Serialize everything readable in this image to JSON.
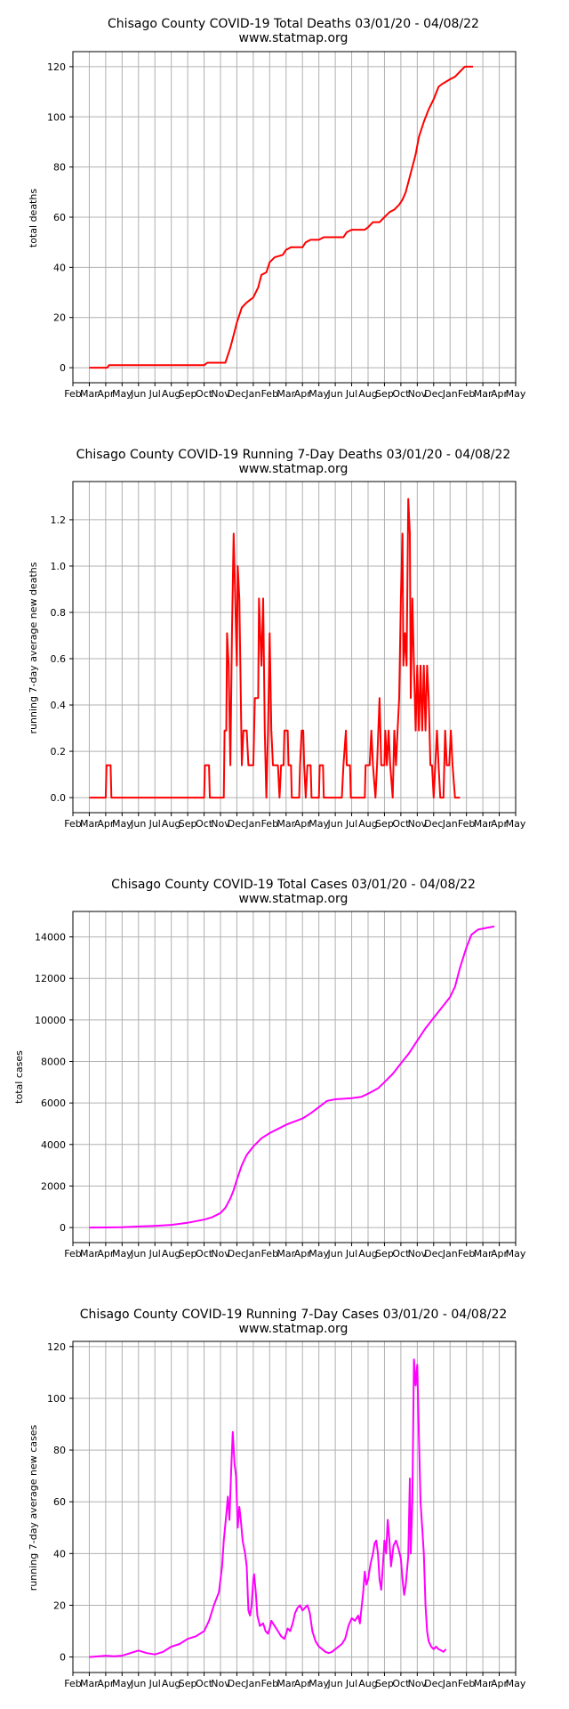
{
  "months": [
    "Feb",
    "Mar",
    "Apr",
    "May",
    "Jun",
    "Jul",
    "Aug",
    "Sep",
    "Oct",
    "Nov",
    "Dec",
    "Jan",
    "Feb",
    "Mar",
    "Apr",
    "May",
    "Jun",
    "Jul",
    "Aug",
    "Sep",
    "Oct",
    "Nov",
    "Dec",
    "Jan",
    "Feb",
    "Mar",
    "Apr",
    "May"
  ],
  "chart_data": [
    {
      "type": "line",
      "title": "Chisago County COVID-19 Total Deaths 03/01/20 - 04/08/22",
      "subtitle": "www.statmap.org",
      "ylabel": "total deaths",
      "color": "#ff0000",
      "grid": true,
      "xlim": [
        0,
        27
      ],
      "ylim": [
        -6,
        126
      ],
      "yticks": [
        0,
        20,
        40,
        60,
        80,
        100,
        120
      ],
      "points": [
        [
          1,
          0
        ],
        [
          2.1,
          0
        ],
        [
          2.2,
          1
        ],
        [
          8,
          1
        ],
        [
          8.2,
          2
        ],
        [
          9.3,
          2
        ],
        [
          9.6,
          8
        ],
        [
          9.8,
          13
        ],
        [
          10,
          18
        ],
        [
          10.3,
          24
        ],
        [
          10.6,
          26
        ],
        [
          11,
          28
        ],
        [
          11.3,
          32
        ],
        [
          11.5,
          37
        ],
        [
          11.8,
          38
        ],
        [
          12,
          42
        ],
        [
          12.3,
          44
        ],
        [
          12.8,
          45
        ],
        [
          13,
          47
        ],
        [
          13.3,
          48
        ],
        [
          14,
          48
        ],
        [
          14.2,
          50
        ],
        [
          14.5,
          51
        ],
        [
          15,
          51
        ],
        [
          15.3,
          52
        ],
        [
          16.5,
          52
        ],
        [
          16.7,
          54
        ],
        [
          17,
          55
        ],
        [
          17.8,
          55
        ],
        [
          18,
          56
        ],
        [
          18.3,
          58
        ],
        [
          18.7,
          58
        ],
        [
          19,
          60
        ],
        [
          19.3,
          62
        ],
        [
          19.6,
          63
        ],
        [
          19.9,
          65
        ],
        [
          20.1,
          67
        ],
        [
          20.3,
          70
        ],
        [
          20.5,
          75
        ],
        [
          20.7,
          80
        ],
        [
          20.9,
          85
        ],
        [
          21.1,
          92
        ],
        [
          21.4,
          98
        ],
        [
          21.7,
          103
        ],
        [
          22,
          107
        ],
        [
          22.3,
          112
        ],
        [
          22.5,
          113
        ],
        [
          23,
          115
        ],
        [
          23.3,
          116
        ],
        [
          23.6,
          118
        ],
        [
          23.9,
          120
        ],
        [
          24.4,
          120
        ]
      ]
    },
    {
      "type": "line",
      "title": "Chisago County COVID-19 Running 7-Day Deaths 03/01/20 - 04/08/22",
      "subtitle": "www.statmap.org",
      "ylabel": "running 7-day average new deaths",
      "color": "#ff0000",
      "grid": true,
      "xlim": [
        0,
        27
      ],
      "ylim": [
        -0.065,
        1.365
      ],
      "yticks": [
        0.0,
        0.2,
        0.4,
        0.6,
        0.8,
        1.0,
        1.2
      ],
      "points": [
        [
          1,
          0
        ],
        [
          2,
          0
        ],
        [
          2.05,
          0.14
        ],
        [
          2.3,
          0.14
        ],
        [
          2.35,
          0
        ],
        [
          8,
          0
        ],
        [
          8.05,
          0.14
        ],
        [
          8.3,
          0.14
        ],
        [
          8.35,
          0
        ],
        [
          9.2,
          0
        ],
        [
          9.25,
          0.29
        ],
        [
          9.35,
          0.29
        ],
        [
          9.4,
          0.71
        ],
        [
          9.5,
          0.57
        ],
        [
          9.6,
          0.14
        ],
        [
          9.7,
          0.71
        ],
        [
          9.8,
          1.14
        ],
        [
          9.9,
          0.86
        ],
        [
          10,
          0.57
        ],
        [
          10.05,
          1.0
        ],
        [
          10.15,
          0.86
        ],
        [
          10.3,
          0.14
        ],
        [
          10.4,
          0.29
        ],
        [
          10.6,
          0.29
        ],
        [
          10.7,
          0.14
        ],
        [
          11,
          0.14
        ],
        [
          11.1,
          0.43
        ],
        [
          11.3,
          0.43
        ],
        [
          11.35,
          0.86
        ],
        [
          11.5,
          0.57
        ],
        [
          11.6,
          0.86
        ],
        [
          11.7,
          0.29
        ],
        [
          11.8,
          0
        ],
        [
          11.9,
          0.29
        ],
        [
          12,
          0.71
        ],
        [
          12.1,
          0.29
        ],
        [
          12.2,
          0.14
        ],
        [
          12.5,
          0.14
        ],
        [
          12.6,
          0
        ],
        [
          12.7,
          0.14
        ],
        [
          12.85,
          0.14
        ],
        [
          12.9,
          0.29
        ],
        [
          13.1,
          0.29
        ],
        [
          13.15,
          0.14
        ],
        [
          13.3,
          0.14
        ],
        [
          13.35,
          0
        ],
        [
          13.8,
          0
        ],
        [
          13.85,
          0.14
        ],
        [
          13.95,
          0.29
        ],
        [
          14.05,
          0.29
        ],
        [
          14.1,
          0.14
        ],
        [
          14.2,
          0
        ],
        [
          14.3,
          0.14
        ],
        [
          14.5,
          0.14
        ],
        [
          14.55,
          0
        ],
        [
          15,
          0
        ],
        [
          15.05,
          0.14
        ],
        [
          15.25,
          0.14
        ],
        [
          15.3,
          0
        ],
        [
          16.4,
          0
        ],
        [
          16.5,
          0.14
        ],
        [
          16.65,
          0.29
        ],
        [
          16.7,
          0.14
        ],
        [
          16.9,
          0.14
        ],
        [
          16.95,
          0
        ],
        [
          17.8,
          0
        ],
        [
          17.85,
          0.14
        ],
        [
          18.1,
          0.14
        ],
        [
          18.2,
          0.29
        ],
        [
          18.3,
          0.14
        ],
        [
          18.45,
          0
        ],
        [
          18.55,
          0.14
        ],
        [
          18.7,
          0.43
        ],
        [
          18.8,
          0.14
        ],
        [
          19,
          0.14
        ],
        [
          19.05,
          0.29
        ],
        [
          19.15,
          0.14
        ],
        [
          19.25,
          0.29
        ],
        [
          19.35,
          0.14
        ],
        [
          19.5,
          0
        ],
        [
          19.6,
          0.29
        ],
        [
          19.7,
          0.14
        ],
        [
          19.8,
          0.29
        ],
        [
          19.9,
          0.43
        ],
        [
          20,
          0.86
        ],
        [
          20.1,
          1.14
        ],
        [
          20.15,
          0.57
        ],
        [
          20.25,
          0.71
        ],
        [
          20.35,
          0.57
        ],
        [
          20.45,
          1.29
        ],
        [
          20.55,
          1.14
        ],
        [
          20.6,
          0.43
        ],
        [
          20.7,
          0.86
        ],
        [
          20.8,
          0.57
        ],
        [
          20.9,
          0.29
        ],
        [
          21,
          0.57
        ],
        [
          21.1,
          0.29
        ],
        [
          21.2,
          0.57
        ],
        [
          21.3,
          0.29
        ],
        [
          21.4,
          0.57
        ],
        [
          21.5,
          0.29
        ],
        [
          21.6,
          0.57
        ],
        [
          21.7,
          0.43
        ],
        [
          21.8,
          0.14
        ],
        [
          21.9,
          0.14
        ],
        [
          22,
          0
        ],
        [
          22.1,
          0.14
        ],
        [
          22.2,
          0.29
        ],
        [
          22.3,
          0.14
        ],
        [
          22.4,
          0
        ],
        [
          22.6,
          0
        ],
        [
          22.7,
          0.29
        ],
        [
          22.8,
          0.14
        ],
        [
          22.95,
          0.14
        ],
        [
          23.05,
          0.29
        ],
        [
          23.15,
          0.14
        ],
        [
          23.3,
          0
        ],
        [
          23.6,
          0
        ]
      ]
    },
    {
      "type": "line",
      "title": "Chisago County COVID-19 Total Cases 03/01/20 - 04/08/22",
      "subtitle": "www.statmap.org",
      "ylabel": "total cases",
      "color": "#ff00ff",
      "grid": true,
      "xlim": [
        0,
        27
      ],
      "ylim": [
        -725,
        15225
      ],
      "yticks": [
        0,
        2000,
        4000,
        6000,
        8000,
        10000,
        12000,
        14000
      ],
      "points": [
        [
          1,
          0
        ],
        [
          2,
          5
        ],
        [
          3,
          15
        ],
        [
          4,
          50
        ],
        [
          5,
          80
        ],
        [
          6,
          130
        ],
        [
          7,
          230
        ],
        [
          8,
          380
        ],
        [
          8.5,
          500
        ],
        [
          9,
          700
        ],
        [
          9.3,
          950
        ],
        [
          9.6,
          1400
        ],
        [
          9.8,
          1800
        ],
        [
          10,
          2300
        ],
        [
          10.3,
          3000
        ],
        [
          10.6,
          3500
        ],
        [
          11,
          3900
        ],
        [
          11.5,
          4300
        ],
        [
          12,
          4550
        ],
        [
          12.5,
          4750
        ],
        [
          13,
          4950
        ],
        [
          13.5,
          5100
        ],
        [
          14,
          5250
        ],
        [
          14.5,
          5500
        ],
        [
          15,
          5800
        ],
        [
          15.5,
          6100
        ],
        [
          16,
          6180
        ],
        [
          17,
          6230
        ],
        [
          17.6,
          6300
        ],
        [
          18,
          6450
        ],
        [
          18.6,
          6700
        ],
        [
          19,
          7000
        ],
        [
          19.5,
          7400
        ],
        [
          20,
          7900
        ],
        [
          20.5,
          8400
        ],
        [
          21,
          9000
        ],
        [
          21.5,
          9600
        ],
        [
          22,
          10100
        ],
        [
          22.5,
          10600
        ],
        [
          23,
          11100
        ],
        [
          23.3,
          11600
        ],
        [
          23.6,
          12500
        ],
        [
          24,
          13500
        ],
        [
          24.3,
          14100
        ],
        [
          24.7,
          14350
        ],
        [
          25.3,
          14450
        ],
        [
          25.7,
          14500
        ]
      ]
    },
    {
      "type": "line",
      "title": "Chisago County COVID-19 Running 7-Day Cases 03/01/20 - 04/08/22",
      "subtitle": "www.statmap.org",
      "ylabel": "running 7-day average new cases",
      "color": "#ff00ff",
      "grid": true,
      "xlim": [
        0,
        27
      ],
      "ylim": [
        -6,
        122
      ],
      "yticks": [
        0,
        20,
        40,
        60,
        80,
        100,
        120
      ],
      "points": [
        [
          1,
          0
        ],
        [
          2,
          0.5
        ],
        [
          2.5,
          0.3
        ],
        [
          3,
          0.5
        ],
        [
          3.5,
          1.5
        ],
        [
          4,
          2.5
        ],
        [
          4.5,
          1.5
        ],
        [
          5,
          1
        ],
        [
          5.5,
          2
        ],
        [
          6,
          4
        ],
        [
          6.5,
          5
        ],
        [
          7,
          7
        ],
        [
          7.5,
          8
        ],
        [
          8,
          10
        ],
        [
          8.3,
          14
        ],
        [
          8.6,
          20
        ],
        [
          8.9,
          25
        ],
        [
          9.1,
          35
        ],
        [
          9.2,
          45
        ],
        [
          9.35,
          55
        ],
        [
          9.45,
          62
        ],
        [
          9.55,
          53
        ],
        [
          9.65,
          72
        ],
        [
          9.75,
          87
        ],
        [
          9.85,
          75
        ],
        [
          9.95,
          70
        ],
        [
          10.05,
          50
        ],
        [
          10.15,
          58
        ],
        [
          10.25,
          52
        ],
        [
          10.35,
          45
        ],
        [
          10.5,
          40
        ],
        [
          10.6,
          35
        ],
        [
          10.7,
          18
        ],
        [
          10.8,
          16
        ],
        [
          10.9,
          20
        ],
        [
          11,
          30
        ],
        [
          11.05,
          32
        ],
        [
          11.15,
          25
        ],
        [
          11.25,
          16
        ],
        [
          11.4,
          12
        ],
        [
          11.6,
          13
        ],
        [
          11.75,
          10
        ],
        [
          11.9,
          9
        ],
        [
          12,
          11
        ],
        [
          12.1,
          14
        ],
        [
          12.3,
          12
        ],
        [
          12.5,
          10
        ],
        [
          12.7,
          8
        ],
        [
          12.9,
          7
        ],
        [
          13,
          9
        ],
        [
          13.1,
          11
        ],
        [
          13.25,
          10
        ],
        [
          13.4,
          13
        ],
        [
          13.55,
          17
        ],
        [
          13.7,
          19
        ],
        [
          13.85,
          20
        ],
        [
          14,
          18
        ],
        [
          14.15,
          19
        ],
        [
          14.3,
          20
        ],
        [
          14.45,
          17
        ],
        [
          14.6,
          10
        ],
        [
          14.8,
          6
        ],
        [
          15,
          4
        ],
        [
          15.2,
          3
        ],
        [
          15.4,
          2
        ],
        [
          15.6,
          1.5
        ],
        [
          15.8,
          2
        ],
        [
          16,
          3
        ],
        [
          16.2,
          4
        ],
        [
          16.4,
          5
        ],
        [
          16.6,
          7
        ],
        [
          16.8,
          12
        ],
        [
          17,
          15
        ],
        [
          17.2,
          14
        ],
        [
          17.4,
          16
        ],
        [
          17.5,
          13
        ],
        [
          17.7,
          25
        ],
        [
          17.8,
          33
        ],
        [
          17.9,
          28
        ],
        [
          18,
          30
        ],
        [
          18.15,
          36
        ],
        [
          18.3,
          40
        ],
        [
          18.4,
          44
        ],
        [
          18.5,
          45
        ],
        [
          18.6,
          40
        ],
        [
          18.7,
          30
        ],
        [
          18.8,
          26
        ],
        [
          18.9,
          35
        ],
        [
          19,
          45
        ],
        [
          19.1,
          40
        ],
        [
          19.2,
          53
        ],
        [
          19.3,
          45
        ],
        [
          19.4,
          35
        ],
        [
          19.55,
          43
        ],
        [
          19.7,
          45
        ],
        [
          19.85,
          42
        ],
        [
          20,
          38
        ],
        [
          20.1,
          30
        ],
        [
          20.2,
          24
        ],
        [
          20.3,
          28
        ],
        [
          20.45,
          39
        ],
        [
          20.55,
          69
        ],
        [
          20.6,
          40
        ],
        [
          20.7,
          60
        ],
        [
          20.8,
          115
        ],
        [
          20.9,
          105
        ],
        [
          21,
          113
        ],
        [
          21.1,
          85
        ],
        [
          21.2,
          60
        ],
        [
          21.3,
          50
        ],
        [
          21.4,
          40
        ],
        [
          21.5,
          20
        ],
        [
          21.6,
          10
        ],
        [
          21.7,
          6
        ],
        [
          21.85,
          4
        ],
        [
          22,
          3
        ],
        [
          22.15,
          4
        ],
        [
          22.3,
          3
        ],
        [
          22.45,
          2.5
        ],
        [
          22.6,
          2
        ],
        [
          22.75,
          3
        ]
      ]
    }
  ]
}
